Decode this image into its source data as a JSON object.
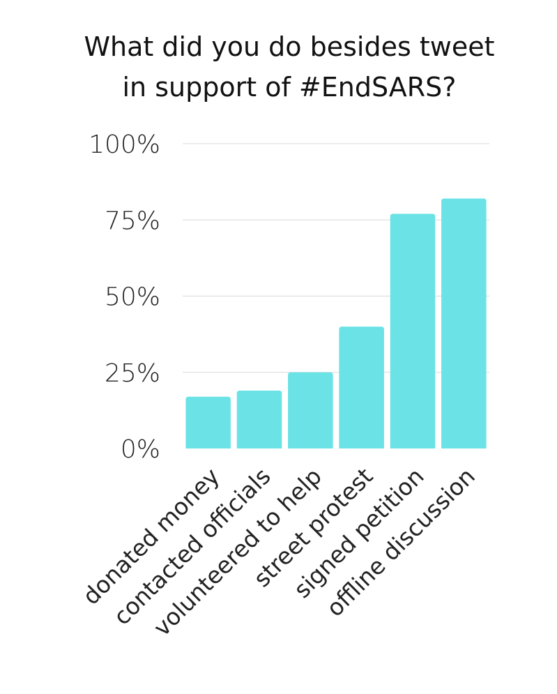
{
  "chart_data": {
    "type": "bar",
    "title_lines": [
      "What did you do besides tweet",
      "in support of #EndSARS?"
    ],
    "categories": [
      "donated money",
      "contacted officials",
      "volunteered to help",
      "street protest",
      "signed petition",
      "offline discussion"
    ],
    "values": [
      17,
      19,
      25,
      40,
      77,
      82
    ],
    "ylim": [
      0,
      100
    ],
    "yticks": [
      0,
      25,
      50,
      75,
      100
    ],
    "ytick_labels": [
      "0%",
      "25%",
      "50%",
      "75%",
      "100%"
    ],
    "grid": true,
    "bar_color": "#6be3e6"
  }
}
